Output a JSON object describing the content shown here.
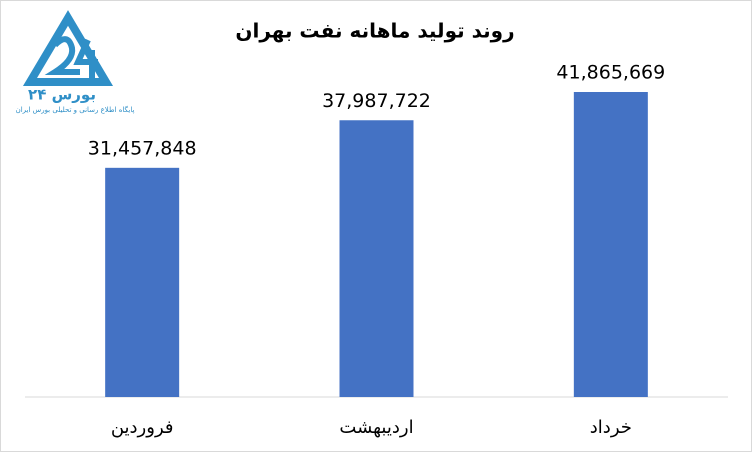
{
  "chart_data": {
    "type": "bar",
    "title": "روند تولید ماهانه نفت بهران",
    "categories": [
      "فروردین",
      "اردیبهشت",
      "خرداد"
    ],
    "values": [
      31457848,
      37987722,
      41865669
    ],
    "value_labels": [
      "31,457,848",
      "37,987,722",
      "41,865,669"
    ],
    "color": "#4472c4"
  },
  "logo": {
    "name": "بورس ۲۴",
    "tagline": "پایگاه اطلاع رسانی و تحلیلی بورس ایران"
  }
}
